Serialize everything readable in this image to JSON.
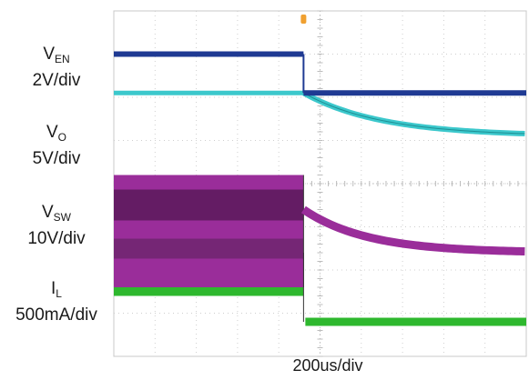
{
  "chart_data": {
    "type": "line",
    "title": "",
    "xlabel": "200us/div",
    "ylabel": "",
    "grid": true,
    "x_divisions": 10,
    "y_divisions": 8,
    "event_time_div": 4.6,
    "series": [
      {
        "name": "V",
        "sub": "EN",
        "scale": "2V/div",
        "color": "#1f3a93",
        "before_level_div": 1.0,
        "after_level_div": 1.9,
        "behavior": "step"
      },
      {
        "name": "V",
        "sub": "O",
        "scale": "5V/div",
        "color": "#3cc8cc",
        "before_level_div": 1.9,
        "after_level_div": 2.9,
        "behavior": "decay"
      },
      {
        "name": "V",
        "sub": "SW",
        "scale": "10V/div",
        "color": "#9a2d9a",
        "band_top_div": 3.8,
        "band_bottom_div": 6.4,
        "after_start_div": 4.6,
        "after_level_div": 5.6,
        "behavior": "switching-then-decay"
      },
      {
        "name": "I",
        "sub": "L",
        "scale": "500mA/div",
        "color": "#2eb82e",
        "band_top_div": 5.6,
        "band_bottom_div": 6.6,
        "after_level_div": 7.2,
        "behavior": "switching-then-flat"
      }
    ]
  }
}
